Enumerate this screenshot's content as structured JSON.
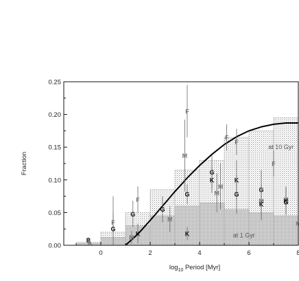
{
  "chart_data": {
    "type": "scatter",
    "xlabel_pre": "log",
    "xlabel_sub": "10",
    "xlabel_post": " Period [Myr]",
    "ylabel": "Fraction",
    "xlim": [
      -1.5,
      8
    ],
    "ylim": [
      0,
      0.25
    ],
    "x_ticks": [
      0,
      2,
      4,
      6,
      8
    ],
    "y_ticks": [
      "0.00",
      "0.05",
      "0.10",
      "0.15",
      "0.20",
      "0.25"
    ],
    "grid": false,
    "legend": "none",
    "annotations": [
      {
        "text": "at 1 Gyr",
        "x": 5.8,
        "y": 0.015
      },
      {
        "text": "at 10 Gyr",
        "x": 7.3,
        "y": 0.15
      }
    ],
    "curve": {
      "name": "",
      "x": [
        1.0,
        1.5,
        2.0,
        2.5,
        3.0,
        3.5,
        4.0,
        4.5,
        5.0,
        5.5,
        6.0,
        6.5,
        7.0,
        7.5,
        8.0
      ],
      "y": [
        0.0,
        0.017,
        0.038,
        0.06,
        0.082,
        0.103,
        0.122,
        0.139,
        0.154,
        0.166,
        0.175,
        0.181,
        0.185,
        0.187,
        0.187
      ]
    },
    "histograms": [
      {
        "name": "at 10 Gyr",
        "bins": [
          -1.0,
          0.0,
          1.0,
          2.0,
          3.0,
          4.0,
          5.0,
          6.0,
          7.0,
          8.0
        ],
        "values": [
          0.005,
          0.02,
          0.05,
          0.085,
          0.115,
          0.13,
          0.165,
          0.175,
          0.195
        ]
      },
      {
        "name": "at 1 Gyr",
        "bins": [
          -1.0,
          0.0,
          1.0,
          2.0,
          3.0,
          4.0,
          5.0,
          6.0,
          7.0,
          8.0
        ],
        "values": [
          0.003,
          0.012,
          0.03,
          0.045,
          0.06,
          0.065,
          0.055,
          0.05,
          0.045
        ]
      }
    ],
    "points": [
      {
        "label": "B",
        "x": -0.5,
        "y": 0.008,
        "err": 0.004
      },
      {
        "label": "A",
        "x": -0.45,
        "y": 0.004,
        "err": 0.003
      },
      {
        "label": "F",
        "x": 0.5,
        "y": 0.035,
        "err": 0.015
      },
      {
        "label": "G",
        "x": 0.5,
        "y": 0.025,
        "err": 0.05
      },
      {
        "label": "F",
        "x": 1.5,
        "y": 0.07,
        "err": 0.02
      },
      {
        "label": "G",
        "x": 1.3,
        "y": 0.048,
        "err": 0.02
      },
      {
        "label": "K",
        "x": 1.5,
        "y": 0.018,
        "err": 0.015
      },
      {
        "label": "M",
        "x": 1.25,
        "y": 0.012,
        "err": 0.01
      },
      {
        "label": "G",
        "x": 2.5,
        "y": 0.055,
        "err": 0.02
      },
      {
        "label": "M",
        "x": 2.8,
        "y": 0.04,
        "err": 0.02
      },
      {
        "label": "F",
        "x": 3.5,
        "y": 0.205,
        "err": 0.04
      },
      {
        "label": "M",
        "x": 3.4,
        "y": 0.137,
        "err": 0.055
      },
      {
        "label": "G",
        "x": 3.5,
        "y": 0.078,
        "err": 0.015
      },
      {
        "label": "K",
        "x": 3.5,
        "y": 0.018,
        "err": 0.01
      },
      {
        "label": "G",
        "x": 4.5,
        "y": 0.112,
        "err": 0.025
      },
      {
        "label": "K",
        "x": 4.5,
        "y": 0.1,
        "err": 0.02
      },
      {
        "label": "M",
        "x": 4.85,
        "y": 0.09,
        "err": 0.035
      },
      {
        "label": "M",
        "x": 4.7,
        "y": 0.08,
        "err": 0.03
      },
      {
        "label": "F",
        "x": 5.1,
        "y": 0.165,
        "err": 0.02
      },
      {
        "label": "F",
        "x": 5.5,
        "y": 0.158,
        "err": 0.02
      },
      {
        "label": "K",
        "x": 5.5,
        "y": 0.1,
        "err": 0.03
      },
      {
        "label": "G",
        "x": 5.5,
        "y": 0.078,
        "err": 0.03
      },
      {
        "label": "G",
        "x": 6.5,
        "y": 0.085,
        "err": 0.03
      },
      {
        "label": "M",
        "x": 6.5,
        "y": 0.068,
        "err": 0.025
      },
      {
        "label": "K",
        "x": 6.5,
        "y": 0.063,
        "err": 0.025
      },
      {
        "label": "F",
        "x": 7.0,
        "y": 0.125,
        "err": 0.02
      },
      {
        "label": "M",
        "x": 7.5,
        "y": 0.07,
        "err": 0.02
      },
      {
        "label": "K",
        "x": 7.5,
        "y": 0.068,
        "err": 0.02
      },
      {
        "label": "G",
        "x": 7.5,
        "y": 0.066,
        "err": 0.02
      },
      {
        "label": "M",
        "x": 8.0,
        "y": 0.033,
        "err": 0.01
      }
    ]
  }
}
